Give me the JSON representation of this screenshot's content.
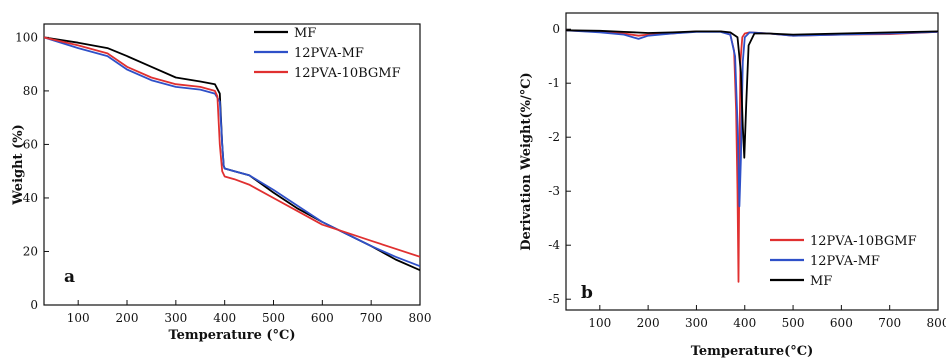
{
  "chart_data": [
    {
      "type": "line",
      "panel_label": "a",
      "xlabel": "Temperature (°C)",
      "ylabel": "Weight (%)",
      "xlim": [
        30,
        800
      ],
      "ylim": [
        0,
        105
      ],
      "xticks": [
        100,
        200,
        300,
        400,
        500,
        600,
        700,
        800
      ],
      "yticks": [
        0,
        20,
        40,
        60,
        80,
        100
      ],
      "grid": false,
      "legend_position": "top-right",
      "series": [
        {
          "name": "MF",
          "color": "#000000",
          "x": [
            30,
            100,
            160,
            200,
            250,
            300,
            350,
            380,
            390,
            395,
            398,
            400,
            420,
            450,
            500,
            550,
            600,
            650,
            700,
            750,
            800
          ],
          "y": [
            100,
            98,
            96,
            93,
            89,
            85,
            83.5,
            82.5,
            79,
            60,
            52,
            51,
            50,
            48.5,
            42,
            36,
            31,
            26.5,
            22,
            17,
            13
          ]
        },
        {
          "name": "12PVA-MF",
          "color": "#2f50c8",
          "x": [
            30,
            100,
            160,
            200,
            250,
            300,
            350,
            380,
            390,
            395,
            398,
            400,
            420,
            450,
            500,
            550,
            600,
            650,
            700,
            750,
            800
          ],
          "y": [
            100,
            96,
            93,
            88,
            84,
            81.5,
            80.5,
            79,
            76,
            60,
            52,
            51,
            50,
            48.5,
            43,
            37,
            31,
            26.5,
            22,
            18,
            14.5
          ]
        },
        {
          "name": "12PVA-10BGMF",
          "color": "#e03030",
          "x": [
            30,
            100,
            160,
            200,
            250,
            300,
            350,
            380,
            385,
            390,
            395,
            400,
            420,
            450,
            500,
            550,
            600,
            650,
            700,
            750,
            800
          ],
          "y": [
            100,
            97,
            94,
            89,
            85,
            82.5,
            81.5,
            80,
            78,
            60,
            50,
            48,
            47,
            45,
            40,
            35,
            30,
            27,
            24,
            21,
            18
          ]
        }
      ]
    },
    {
      "type": "line",
      "panel_label": "b",
      "xlabel": "Temperature(°C)",
      "ylabel": "Derivation Weight(%/°C)",
      "xlim": [
        30,
        800
      ],
      "ylim": [
        -5.2,
        0.3
      ],
      "xticks": [
        100,
        200,
        300,
        400,
        500,
        600,
        700,
        800
      ],
      "yticks": [
        0,
        -1,
        -2,
        -3,
        -4,
        -5
      ],
      "grid": false,
      "legend_position": "bottom-right",
      "series": [
        {
          "name": "12PVA-10BGMF",
          "color": "#e03030",
          "x": [
            30,
            100,
            150,
            180,
            200,
            250,
            300,
            350,
            370,
            378,
            382,
            385,
            387,
            389,
            391,
            395,
            400,
            410,
            450,
            500,
            600,
            700,
            800
          ],
          "y": [
            -0.02,
            -0.05,
            -0.08,
            -0.12,
            -0.1,
            -0.08,
            -0.04,
            -0.04,
            -0.1,
            -0.4,
            -1.5,
            -3.0,
            -4.68,
            -2.5,
            -0.6,
            -0.15,
            -0.08,
            -0.06,
            -0.08,
            -0.12,
            -0.1,
            -0.09,
            -0.05
          ]
        },
        {
          "name": "12PVA-MF",
          "color": "#2f50c8",
          "x": [
            30,
            100,
            150,
            180,
            200,
            250,
            300,
            350,
            370,
            380,
            386,
            389,
            392,
            396,
            400,
            410,
            450,
            500,
            600,
            700,
            800
          ],
          "y": [
            -0.02,
            -0.06,
            -0.1,
            -0.18,
            -0.12,
            -0.08,
            -0.05,
            -0.05,
            -0.1,
            -0.5,
            -2.0,
            -3.28,
            -2.4,
            -0.6,
            -0.15,
            -0.06,
            -0.08,
            -0.12,
            -0.1,
            -0.08,
            -0.05
          ]
        },
        {
          "name": "MF",
          "color": "#000000",
          "x": [
            30,
            100,
            150,
            200,
            250,
            300,
            350,
            370,
            385,
            392,
            396,
            399,
            403,
            408,
            420,
            450,
            500,
            600,
            700,
            800
          ],
          "y": [
            -0.02,
            -0.03,
            -0.05,
            -0.07,
            -0.06,
            -0.04,
            -0.04,
            -0.06,
            -0.15,
            -0.8,
            -1.8,
            -2.38,
            -1.4,
            -0.3,
            -0.08,
            -0.08,
            -0.1,
            -0.08,
            -0.06,
            -0.04
          ]
        }
      ]
    }
  ]
}
